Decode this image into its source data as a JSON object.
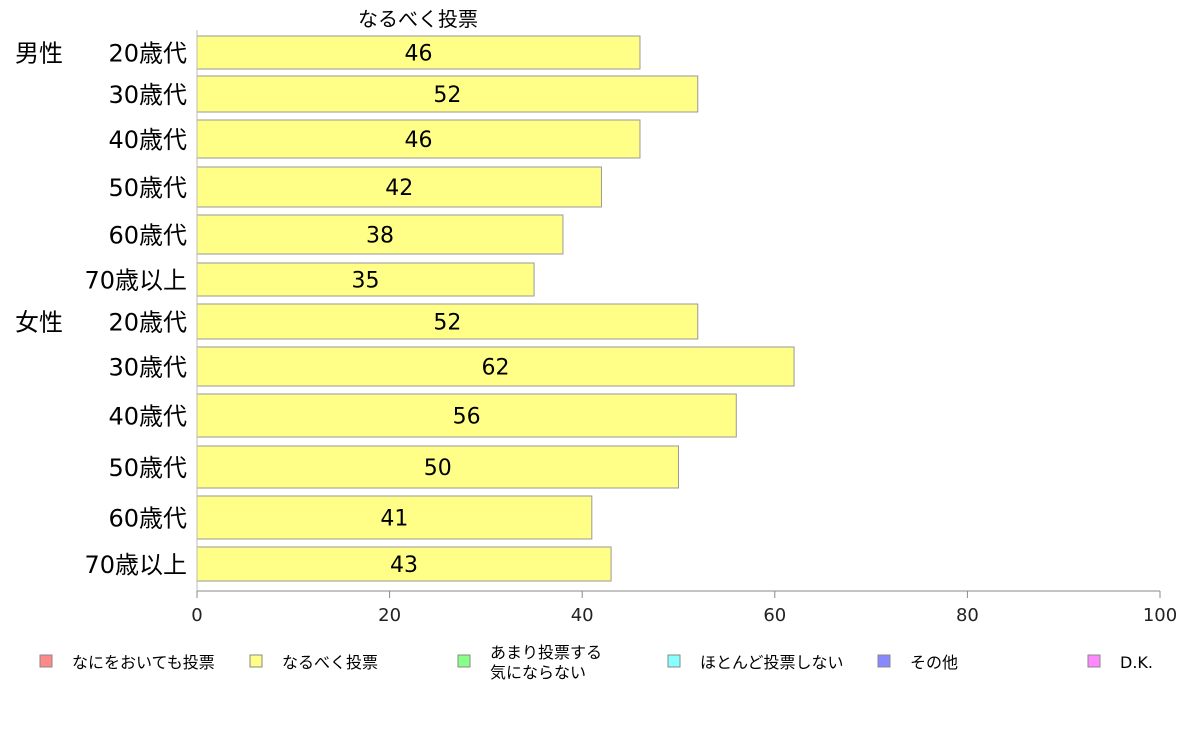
{
  "chart_data": {
    "type": "bar",
    "orientation": "horizontal",
    "title": "なるべく投票",
    "groups": [
      {
        "name": "男性",
        "categories": [
          "20歳代",
          "30歳代",
          "40歳代",
          "50歳代",
          "60歳代",
          "70歳以上"
        ],
        "values": [
          46,
          52,
          46,
          42,
          38,
          35
        ]
      },
      {
        "name": "女性",
        "categories": [
          "20歳代",
          "30歳代",
          "40歳代",
          "50歳代",
          "60歳代",
          "70歳以上"
        ],
        "values": [
          52,
          62,
          56,
          50,
          41,
          43
        ]
      }
    ],
    "xlim": [
      0,
      100
    ],
    "xticks": [
      0,
      20,
      40,
      60,
      80,
      100
    ],
    "bar_color": "#ffff88",
    "bar_stroke": "#999999",
    "grid": false,
    "legend_position": "bottom",
    "legend": [
      {
        "label": "なにをおいても投票",
        "color": "#ff8888"
      },
      {
        "label": "なるべく投票",
        "color": "#ffff88"
      },
      {
        "label": "あまり投票する\n気にならない",
        "color": "#88ff88"
      },
      {
        "label": "ほとんど投票しない",
        "color": "#88ffff"
      },
      {
        "label": "その他",
        "color": "#8888ff"
      },
      {
        "label": "D.K.",
        "color": "#ff88ff"
      }
    ]
  }
}
